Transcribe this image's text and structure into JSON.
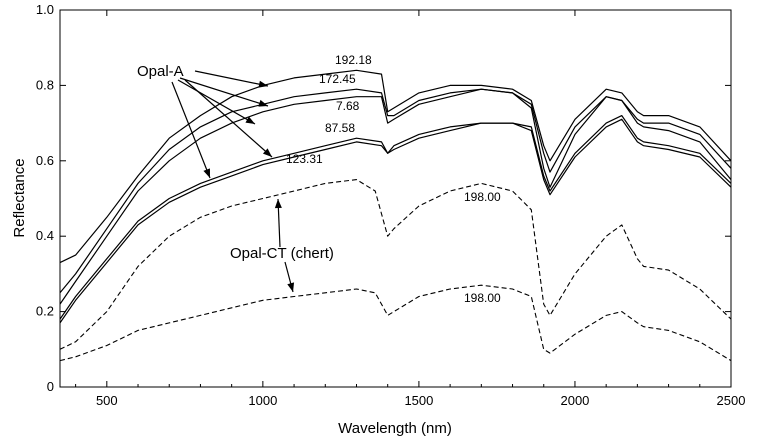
{
  "chart_data": {
    "type": "line",
    "title": "",
    "xlabel": "Wavelength (nm)",
    "ylabel": "Reflectance",
    "xlim": [
      350,
      2500
    ],
    "ylim": [
      0,
      1.0
    ],
    "xticks": [
      "500",
      "1000",
      "1500",
      "2000",
      "2500"
    ],
    "yticks": [
      "0",
      "0.2",
      "0.4",
      "0.6",
      "0.8",
      "1.0"
    ],
    "grid": false,
    "annotations": {
      "opal_a": "Opal-A",
      "opal_ct": "Opal-CT (chert)"
    },
    "series": [
      {
        "name": "192.18",
        "group": "Opal-A",
        "style": "solid",
        "x": [
          350,
          400,
          500,
          600,
          700,
          800,
          900,
          1000,
          1100,
          1200,
          1300,
          1380,
          1400,
          1420,
          1500,
          1600,
          1700,
          1800,
          1860,
          1900,
          1920,
          2000,
          2100,
          2150,
          2200,
          2220,
          2300,
          2400,
          2500
        ],
        "y": [
          0.33,
          0.35,
          0.45,
          0.56,
          0.66,
          0.72,
          0.77,
          0.8,
          0.82,
          0.83,
          0.84,
          0.83,
          0.73,
          0.74,
          0.78,
          0.8,
          0.8,
          0.79,
          0.76,
          0.64,
          0.6,
          0.71,
          0.79,
          0.78,
          0.73,
          0.72,
          0.72,
          0.69,
          0.6
        ]
      },
      {
        "name": "172.45",
        "group": "Opal-A",
        "style": "solid",
        "x": [
          350,
          400,
          500,
          600,
          700,
          800,
          900,
          1000,
          1100,
          1200,
          1300,
          1380,
          1400,
          1420,
          1500,
          1600,
          1700,
          1800,
          1860,
          1900,
          1920,
          2000,
          2100,
          2150,
          2200,
          2220,
          2300,
          2400,
          2500
        ],
        "y": [
          0.25,
          0.3,
          0.42,
          0.54,
          0.63,
          0.69,
          0.73,
          0.75,
          0.77,
          0.78,
          0.79,
          0.78,
          0.72,
          0.72,
          0.76,
          0.78,
          0.79,
          0.78,
          0.75,
          0.62,
          0.57,
          0.69,
          0.77,
          0.76,
          0.71,
          0.7,
          0.7,
          0.67,
          0.58
        ]
      },
      {
        "name": "7.68",
        "group": "Opal-A",
        "style": "solid",
        "x": [
          350,
          400,
          500,
          600,
          700,
          800,
          900,
          1000,
          1100,
          1200,
          1300,
          1380,
          1400,
          1420,
          1500,
          1600,
          1700,
          1800,
          1860,
          1900,
          1920,
          2000,
          2100,
          2150,
          2200,
          2220,
          2300,
          2400,
          2500
        ],
        "y": [
          0.22,
          0.28,
          0.4,
          0.52,
          0.6,
          0.66,
          0.7,
          0.73,
          0.75,
          0.76,
          0.77,
          0.77,
          0.7,
          0.71,
          0.75,
          0.77,
          0.79,
          0.78,
          0.74,
          0.58,
          0.53,
          0.67,
          0.77,
          0.76,
          0.7,
          0.69,
          0.68,
          0.65,
          0.55
        ]
      },
      {
        "name": "87.58",
        "group": "Opal-A",
        "style": "solid",
        "x": [
          350,
          400,
          500,
          600,
          700,
          800,
          900,
          1000,
          1100,
          1200,
          1300,
          1380,
          1400,
          1420,
          1500,
          1600,
          1700,
          1800,
          1860,
          1900,
          1920,
          2000,
          2100,
          2150,
          2200,
          2220,
          2300,
          2400,
          2500
        ],
        "y": [
          0.18,
          0.24,
          0.34,
          0.44,
          0.5,
          0.54,
          0.57,
          0.6,
          0.62,
          0.64,
          0.66,
          0.65,
          0.62,
          0.64,
          0.67,
          0.69,
          0.7,
          0.7,
          0.69,
          0.56,
          0.52,
          0.62,
          0.7,
          0.72,
          0.66,
          0.65,
          0.64,
          0.62,
          0.54
        ]
      },
      {
        "name": "123.31",
        "group": "Opal-A",
        "style": "solid",
        "x": [
          350,
          400,
          500,
          600,
          700,
          800,
          900,
          1000,
          1100,
          1200,
          1300,
          1380,
          1400,
          1420,
          1500,
          1600,
          1700,
          1800,
          1860,
          1900,
          1920,
          2000,
          2100,
          2150,
          2200,
          2220,
          2300,
          2400,
          2500
        ],
        "y": [
          0.17,
          0.23,
          0.33,
          0.43,
          0.49,
          0.53,
          0.56,
          0.59,
          0.61,
          0.63,
          0.65,
          0.64,
          0.62,
          0.63,
          0.66,
          0.68,
          0.7,
          0.7,
          0.68,
          0.55,
          0.51,
          0.61,
          0.69,
          0.71,
          0.65,
          0.64,
          0.63,
          0.61,
          0.53
        ]
      },
      {
        "name": "198.00",
        "group": "Opal-CT (chert)",
        "style": "dashed",
        "x": [
          350,
          400,
          500,
          600,
          700,
          800,
          900,
          1000,
          1100,
          1200,
          1300,
          1360,
          1400,
          1420,
          1500,
          1600,
          1700,
          1800,
          1860,
          1900,
          1920,
          2000,
          2100,
          2150,
          2200,
          2220,
          2300,
          2400,
          2500
        ],
        "y": [
          0.1,
          0.12,
          0.2,
          0.32,
          0.4,
          0.45,
          0.48,
          0.5,
          0.52,
          0.54,
          0.55,
          0.52,
          0.4,
          0.42,
          0.48,
          0.52,
          0.54,
          0.52,
          0.47,
          0.22,
          0.19,
          0.3,
          0.4,
          0.43,
          0.34,
          0.32,
          0.31,
          0.26,
          0.18
        ]
      },
      {
        "name": "198.00",
        "group": "Opal-CT (chert)",
        "style": "dashed",
        "x": [
          350,
          400,
          500,
          600,
          700,
          800,
          900,
          1000,
          1100,
          1200,
          1300,
          1360,
          1400,
          1420,
          1500,
          1600,
          1700,
          1800,
          1860,
          1900,
          1920,
          2000,
          2100,
          2150,
          2200,
          2220,
          2300,
          2400,
          2500
        ],
        "y": [
          0.07,
          0.08,
          0.11,
          0.15,
          0.17,
          0.19,
          0.21,
          0.23,
          0.24,
          0.25,
          0.26,
          0.25,
          0.19,
          0.2,
          0.24,
          0.26,
          0.27,
          0.26,
          0.24,
          0.1,
          0.09,
          0.14,
          0.19,
          0.2,
          0.17,
          0.16,
          0.15,
          0.12,
          0.07
        ]
      }
    ]
  }
}
